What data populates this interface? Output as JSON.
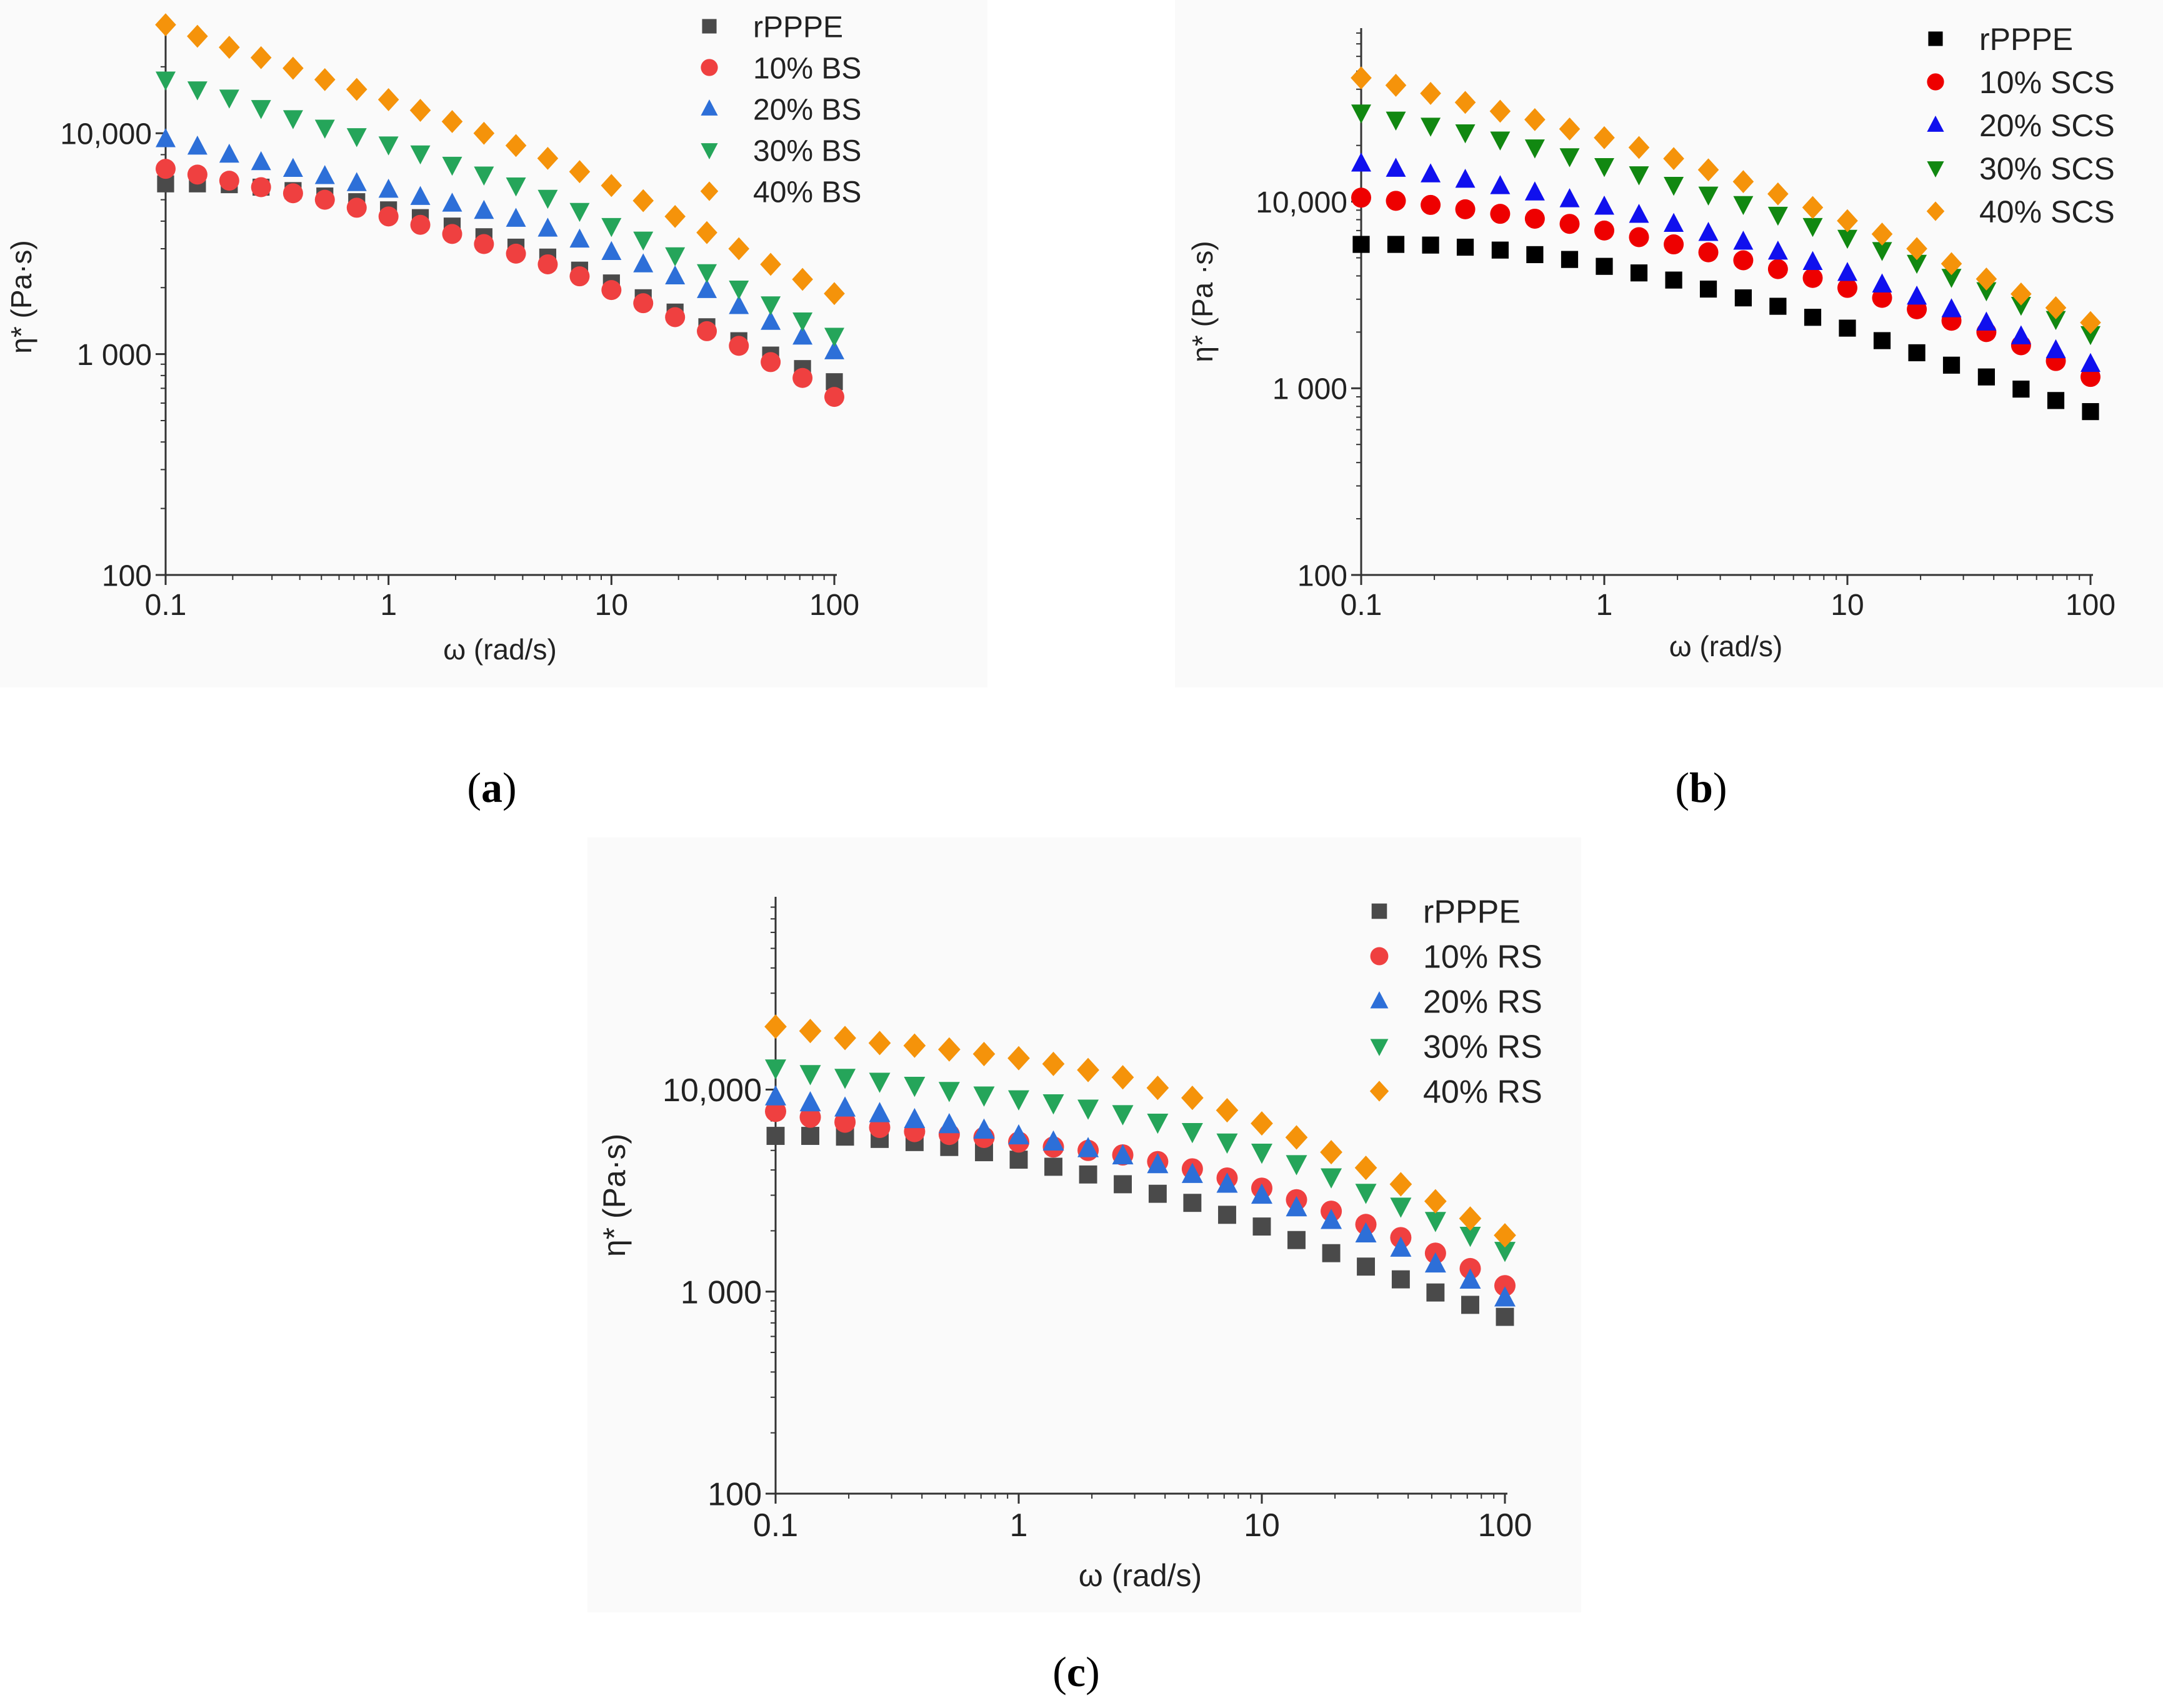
{
  "colors": {
    "a": [
      "#4a4a4a",
      "#ef4040",
      "#2d6fd8",
      "#25a55a",
      "#f5930a"
    ],
    "b": [
      "#000000",
      "#ee0000",
      "#1010ee",
      "#118811",
      "#f5930a"
    ],
    "c": [
      "#4a4a4a",
      "#ef4040",
      "#2d6fd8",
      "#25a55a",
      "#f5930a"
    ]
  },
  "chart_data": [
    {
      "id": "a",
      "type": "scatter",
      "caption": "a",
      "xlabel": "ω (rad/s)",
      "ylabel": "η* (Pa·s)",
      "xscale": "log",
      "yscale": "log",
      "xlim": [
        0.1,
        100
      ],
      "ylim": [
        100,
        33000
      ],
      "xticks": [
        {
          "v": 0.1,
          "label": "0.1"
        },
        {
          "v": 1,
          "label": "1"
        },
        {
          "v": 10,
          "label": "10"
        },
        {
          "v": 100,
          "label": "100"
        }
      ],
      "yticks": [
        {
          "v": 100,
          "label": "100"
        },
        {
          "v": 1000,
          "label": "1 000"
        },
        {
          "v": 10000,
          "label": "10,000"
        }
      ],
      "x": [
        0.1,
        0.1389,
        0.193,
        0.268,
        0.373,
        0.518,
        0.72,
        1.0,
        1.389,
        1.93,
        2.68,
        3.73,
        5.18,
        7.2,
        10.0,
        13.89,
        19.3,
        26.8,
        37.3,
        51.8,
        72.0,
        100.0
      ],
      "series": [
        {
          "name": "rPPPE",
          "marker": "square",
          "values": [
            5900,
            5900,
            5850,
            5700,
            5500,
            5200,
            4900,
            4500,
            4150,
            3800,
            3400,
            3050,
            2750,
            2400,
            2100,
            1800,
            1550,
            1330,
            1150,
            990,
            860,
            750
          ]
        },
        {
          "name": "10% BS",
          "marker": "circle",
          "values": [
            6900,
            6500,
            6100,
            5700,
            5350,
            5000,
            4600,
            4200,
            3850,
            3500,
            3150,
            2850,
            2550,
            2250,
            1950,
            1700,
            1470,
            1270,
            1090,
            920,
            780,
            640
          ]
        },
        {
          "name": "20% BS",
          "marker": "triangle-up",
          "values": [
            9400,
            8700,
            8000,
            7400,
            6900,
            6400,
            5950,
            5550,
            5150,
            4800,
            4450,
            4100,
            3700,
            3300,
            2900,
            2550,
            2250,
            1950,
            1650,
            1400,
            1200,
            1030
          ]
        },
        {
          "name": "30% BS",
          "marker": "triangle-down",
          "values": [
            17500,
            15800,
            14500,
            13000,
            11700,
            10600,
            9700,
            8900,
            8100,
            7200,
            6500,
            5800,
            5100,
            4450,
            3800,
            3300,
            2800,
            2350,
            1980,
            1680,
            1420,
            1210
          ]
        },
        {
          "name": "40% BS",
          "marker": "diamond",
          "values": [
            31000,
            27500,
            24500,
            22000,
            19700,
            17500,
            15800,
            14200,
            12700,
            11300,
            10000,
            8800,
            7700,
            6700,
            5800,
            4950,
            4200,
            3550,
            3000,
            2550,
            2180,
            1880
          ]
        }
      ]
    },
    {
      "id": "b",
      "type": "scatter",
      "caption": "b",
      "xlabel": "ω (rad/s)",
      "ylabel": "η* (Pa ·s)",
      "xscale": "log",
      "yscale": "log",
      "xlim": [
        0.1,
        100
      ],
      "ylim": [
        100,
        85000
      ],
      "xticks": [
        {
          "v": 0.1,
          "label": "0.1"
        },
        {
          "v": 1,
          "label": "1"
        },
        {
          "v": 10,
          "label": "10"
        },
        {
          "v": 100,
          "label": "100"
        }
      ],
      "yticks": [
        {
          "v": 100,
          "label": "100"
        },
        {
          "v": 1000,
          "label": "1 000"
        },
        {
          "v": 10000,
          "label": "10,000"
        }
      ],
      "x": [
        0.1,
        0.1389,
        0.193,
        0.268,
        0.373,
        0.518,
        0.72,
        1.0,
        1.389,
        1.93,
        2.68,
        3.73,
        5.18,
        7.2,
        10.0,
        13.89,
        19.3,
        26.8,
        37.3,
        51.8,
        72.0,
        100.0
      ],
      "series": [
        {
          "name": "rPPPE",
          "marker": "square",
          "values": [
            5900,
            5900,
            5850,
            5700,
            5500,
            5200,
            4900,
            4500,
            4150,
            3800,
            3400,
            3050,
            2750,
            2400,
            2100,
            1800,
            1550,
            1330,
            1150,
            990,
            860,
            750
          ]
        },
        {
          "name": "10% SCS",
          "marker": "circle",
          "values": [
            10500,
            10100,
            9600,
            9100,
            8600,
            8100,
            7600,
            7000,
            6450,
            5900,
            5350,
            4850,
            4350,
            3900,
            3450,
            3050,
            2650,
            2300,
            2000,
            1700,
            1400,
            1150
          ]
        },
        {
          "name": "20% SCS",
          "marker": "triangle-up",
          "values": [
            16000,
            15000,
            14000,
            13100,
            12100,
            11200,
            10300,
            9400,
            8500,
            7600,
            6800,
            6100,
            5400,
            4750,
            4150,
            3600,
            3100,
            2650,
            2250,
            1900,
            1600,
            1350
          ]
        },
        {
          "name": "30% SCS",
          "marker": "triangle-down",
          "values": [
            30000,
            27500,
            25500,
            23500,
            21500,
            19500,
            17500,
            15500,
            14000,
            12300,
            10900,
            9700,
            8500,
            7400,
            6400,
            5500,
            4700,
            3950,
            3350,
            2800,
            2350,
            1950
          ]
        },
        {
          "name": "40% SCS",
          "marker": "diamond",
          "values": [
            46000,
            42000,
            38000,
            34000,
            30500,
            27500,
            24500,
            22000,
            19500,
            17000,
            14800,
            12800,
            11000,
            9300,
            7900,
            6700,
            5600,
            4650,
            3850,
            3200,
            2700,
            2250
          ]
        }
      ]
    },
    {
      "id": "c",
      "type": "scatter",
      "caption": "c",
      "xlabel": "ω (rad/s)",
      "ylabel": "η* (Pa·s)",
      "xscale": "log",
      "yscale": "log",
      "xlim": [
        0.1,
        100
      ],
      "ylim": [
        100,
        90000
      ],
      "xticks": [
        {
          "v": 0.1,
          "label": "0.1"
        },
        {
          "v": 1,
          "label": "1"
        },
        {
          "v": 10,
          "label": "10"
        },
        {
          "v": 100,
          "label": "100"
        }
      ],
      "yticks": [
        {
          "v": 100,
          "label": "100"
        },
        {
          "v": 1000,
          "label": "1 000"
        },
        {
          "v": 10000,
          "label": "10,000"
        }
      ],
      "x": [
        0.1,
        0.1389,
        0.193,
        0.268,
        0.373,
        0.518,
        0.72,
        1.0,
        1.389,
        1.93,
        2.68,
        3.73,
        5.18,
        7.2,
        10.0,
        13.89,
        19.3,
        26.8,
        37.3,
        51.8,
        72.0,
        100.0
      ],
      "series": [
        {
          "name": "rPPPE",
          "marker": "square",
          "values": [
            5900,
            5900,
            5850,
            5700,
            5500,
            5200,
            4900,
            4500,
            4150,
            3800,
            3400,
            3050,
            2750,
            2400,
            2100,
            1800,
            1550,
            1330,
            1150,
            990,
            860,
            750
          ]
        },
        {
          "name": "10% RS",
          "marker": "circle",
          "values": [
            7800,
            7300,
            6900,
            6500,
            6200,
            6000,
            5800,
            5500,
            5200,
            5000,
            4750,
            4400,
            4050,
            3650,
            3250,
            2850,
            2500,
            2150,
            1850,
            1550,
            1300,
            1070
          ]
        },
        {
          "name": "20% RS",
          "marker": "triangle-up",
          "values": [
            9200,
            8600,
            8100,
            7600,
            7100,
            6700,
            6300,
            5900,
            5500,
            5100,
            4700,
            4250,
            3800,
            3400,
            3000,
            2600,
            2250,
            1930,
            1640,
            1370,
            1140,
            930
          ]
        },
        {
          "name": "30% RS",
          "marker": "triangle-down",
          "values": [
            12800,
            12000,
            11500,
            11000,
            10500,
            9900,
            9400,
            9000,
            8600,
            8100,
            7600,
            6900,
            6200,
            5500,
            4900,
            4300,
            3700,
            3100,
            2650,
            2250,
            1900,
            1600
          ]
        },
        {
          "name": "40% RS",
          "marker": "diamond",
          "values": [
            20500,
            19500,
            18000,
            17000,
            16500,
            15800,
            15000,
            14300,
            13400,
            12500,
            11500,
            10200,
            9100,
            7900,
            6800,
            5800,
            4900,
            4100,
            3400,
            2800,
            2300,
            1900
          ]
        }
      ]
    }
  ]
}
